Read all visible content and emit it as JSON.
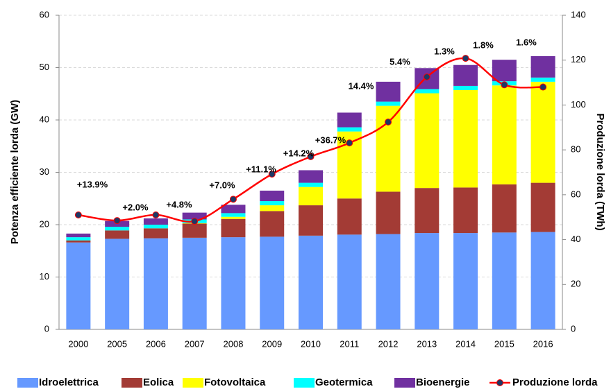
{
  "chart_data": {
    "type": "bar",
    "stacked": true,
    "y_label": "Potenza efficiente lorda (GW)",
    "y2_label": "Produzione lorda (TWh)",
    "categories": [
      "2000",
      "2005",
      "2006",
      "2007",
      "2008",
      "2009",
      "2010",
      "2011",
      "2012",
      "2013",
      "2014",
      "2015",
      "2016"
    ],
    "series": [
      {
        "name": "Idroelettrica",
        "color": "#6699ff",
        "values": [
          16.6,
          17.3,
          17.4,
          17.5,
          17.6,
          17.7,
          17.9,
          18.1,
          18.2,
          18.4,
          18.4,
          18.5,
          18.6
        ]
      },
      {
        "name": "Eolica",
        "color": "#a33b35",
        "values": [
          0.4,
          1.6,
          1.9,
          2.7,
          3.5,
          4.9,
          5.8,
          6.9,
          8.1,
          8.6,
          8.7,
          9.2,
          9.4
        ]
      },
      {
        "name": "Fotovoltaica",
        "color": "#ffff00",
        "values": [
          0.0,
          0.0,
          0.0,
          0.1,
          0.4,
          1.1,
          3.5,
          12.8,
          16.4,
          18.1,
          18.6,
          18.9,
          19.3
        ]
      },
      {
        "name": "Geotermica",
        "color": "#00ffff",
        "values": [
          0.6,
          0.7,
          0.7,
          0.7,
          0.7,
          0.8,
          0.8,
          0.8,
          0.8,
          0.8,
          0.8,
          0.8,
          0.8
        ]
      },
      {
        "name": "Bioenergie",
        "color": "#7030a0",
        "values": [
          0.7,
          1.1,
          1.2,
          1.3,
          1.6,
          2.0,
          2.4,
          2.8,
          3.8,
          4.0,
          4.0,
          4.1,
          4.1
        ]
      },
      {
        "name": "Produzione lorda",
        "type": "line",
        "axis": "y2",
        "color": "#ff0000",
        "marker_color": "#1f3864",
        "values": [
          51,
          48.5,
          51,
          48.2,
          58,
          69.2,
          77,
          83.1,
          92.4,
          112.5,
          120.8,
          109,
          108
        ]
      }
    ],
    "annotations": [
      null,
      "+13.9%",
      "+2.0%",
      "+4.8%",
      "+7.0%",
      "+11.1%",
      "+14.2%",
      "+36.7%",
      "14.4%",
      "5.4%",
      "1.3%",
      "1.8%",
      "1.6%"
    ],
    "ylim": [
      0,
      60
    ],
    "yticks": [
      0,
      10,
      20,
      30,
      40,
      50,
      60
    ],
    "y2lim": [
      0,
      140
    ],
    "y2ticks": [
      0,
      20,
      40,
      60,
      80,
      100,
      120,
      140
    ],
    "grid": true
  }
}
